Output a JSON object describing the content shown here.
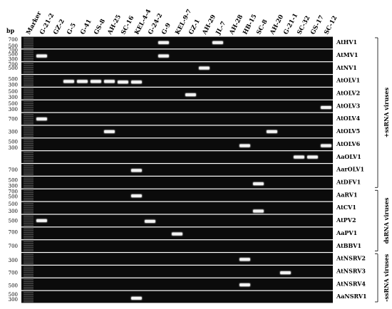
{
  "bp_title": "bp",
  "lanes": [
    "Marker",
    "G-21-2",
    "GZ-2",
    "G-5",
    "G-41",
    "GS-8",
    "AH-25",
    "SC-16",
    "KEL-4-4",
    "G-24-2",
    "G-9",
    "KEL-9-7",
    "GZ-1",
    "AH-29",
    "JL-7",
    "AH-28",
    "HB-15",
    "SC-8",
    "AH-20",
    "G-21-1",
    "SC-32",
    "GS-17",
    "SC-12"
  ],
  "rows": [
    {
      "virus": "AtHV1",
      "bp": [
        {
          "value": "700",
          "f": 0.25
        },
        {
          "value": "500",
          "f": 0.75
        }
      ],
      "bands": [
        {
          "lane": 10,
          "f": 0.5
        },
        {
          "lane": 14,
          "f": 0.5
        }
      ]
    },
    {
      "virus": "AtMV1",
      "bp": [
        {
          "value": "700",
          "f": 0.1
        },
        {
          "value": "500",
          "f": 0.4
        },
        {
          "value": "300",
          "f": 0.8
        }
      ],
      "bands": [
        {
          "lane": 1,
          "f": 0.55
        },
        {
          "lane": 10,
          "f": 0.55
        }
      ]
    },
    {
      "virus": "AtNV1",
      "bp": [
        {
          "value": "700",
          "f": 0.2
        },
        {
          "value": "500",
          "f": 0.5
        }
      ],
      "bands": [
        {
          "lane": 13,
          "f": 0.5
        }
      ]
    },
    {
      "virus": "AtOLV1",
      "bp": [
        {
          "value": "500",
          "f": 0.35
        },
        {
          "value": "300",
          "f": 0.8
        }
      ],
      "bands": [
        {
          "lane": 3,
          "f": 0.55
        },
        {
          "lane": 4,
          "f": 0.55
        },
        {
          "lane": 5,
          "f": 0.55
        },
        {
          "lane": 6,
          "f": 0.55
        },
        {
          "lane": 7,
          "f": 0.6
        },
        {
          "lane": 8,
          "f": 0.6
        }
      ]
    },
    {
      "virus": "AtOLV2",
      "bp": [
        {
          "value": "500",
          "f": 0.35
        },
        {
          "value": "300",
          "f": 0.8
        }
      ],
      "bands": [
        {
          "lane": 12,
          "f": 0.6
        }
      ]
    },
    {
      "virus": "AtOLV3",
      "bp": [
        {
          "value": "500",
          "f": 0.3
        },
        {
          "value": "300",
          "f": 0.75
        }
      ],
      "bands": [
        {
          "lane": 22,
          "f": 0.6
        }
      ]
    },
    {
      "virus": "AtOLV4",
      "bp": [
        {
          "value": "700",
          "f": 0.5
        }
      ],
      "bands": [
        {
          "lane": 1,
          "f": 0.5
        }
      ]
    },
    {
      "virus": "AtOLV5",
      "bp": [
        {
          "value": "300",
          "f": 0.5
        }
      ],
      "bands": [
        {
          "lane": 6,
          "f": 0.5
        },
        {
          "lane": 18,
          "f": 0.5
        }
      ]
    },
    {
      "virus": "AtOLV6",
      "bp": [
        {
          "value": "500",
          "f": 0.3
        },
        {
          "value": "300",
          "f": 0.75
        }
      ],
      "bands": [
        {
          "lane": 16,
          "f": 0.6
        },
        {
          "lane": 22,
          "f": 0.6
        }
      ]
    },
    {
      "virus": "AaOLV1",
      "bp": [],
      "bands": [
        {
          "lane": 20,
          "f": 0.5
        },
        {
          "lane": 21,
          "f": 0.5
        }
      ]
    },
    {
      "virus": "AarOLV1",
      "bp": [
        {
          "value": "700",
          "f": 0.5
        }
      ],
      "bands": [
        {
          "lane": 8,
          "f": 0.55
        }
      ]
    },
    {
      "virus": "AtDFV1",
      "bp": [
        {
          "value": "500",
          "f": 0.3
        },
        {
          "value": "300",
          "f": 0.75
        }
      ],
      "bands": [
        {
          "lane": 17,
          "f": 0.6
        }
      ]
    },
    {
      "virus": "AaRV1",
      "bp": [
        {
          "value": "700",
          "f": 0.2
        },
        {
          "value": "500",
          "f": 0.6
        }
      ],
      "bands": [
        {
          "lane": 8,
          "f": 0.55
        }
      ]
    },
    {
      "virus": "AtCV1",
      "bp": [
        {
          "value": "500",
          "f": 0.2
        },
        {
          "value": "300",
          "f": 0.75
        }
      ],
      "bands": [
        {
          "lane": 17,
          "f": 0.75
        }
      ]
    },
    {
      "virus": "AtPV2",
      "bp": [
        {
          "value": "500",
          "f": 0.5
        }
      ],
      "bands": [
        {
          "lane": 1,
          "f": 0.5
        },
        {
          "lane": 9,
          "f": 0.55
        }
      ]
    },
    {
      "virus": "AaPV1",
      "bp": [
        {
          "value": "700",
          "f": 0.4
        }
      ],
      "bands": [
        {
          "lane": 11,
          "f": 0.55
        }
      ]
    },
    {
      "virus": "AtBBV1",
      "bp": [
        {
          "value": "700",
          "f": 0.5
        }
      ],
      "bands": []
    },
    {
      "virus": "AtNSRV2",
      "bp": [
        {
          "value": "300",
          "f": 0.6
        }
      ],
      "bands": [
        {
          "lane": 16,
          "f": 0.55
        }
      ]
    },
    {
      "virus": "AtNSRV3",
      "bp": [
        {
          "value": "700",
          "f": 0.6
        }
      ],
      "bands": [
        {
          "lane": 19,
          "f": 0.6
        }
      ]
    },
    {
      "virus": "AtNSRV4",
      "bp": [
        {
          "value": "500",
          "f": 0.6
        }
      ],
      "bands": [
        {
          "lane": 16,
          "f": 0.55
        }
      ]
    },
    {
      "virus": "AaNSRV1",
      "bp": [
        {
          "value": "500",
          "f": 0.3
        },
        {
          "value": "300",
          "f": 0.7
        }
      ],
      "bands": [
        {
          "lane": 8,
          "f": 0.6
        }
      ]
    }
  ],
  "groups": [
    {
      "label": "+ssRNA viruses",
      "from": 0,
      "to": 11
    },
    {
      "label": "dsRNA viruses",
      "from": 12,
      "to": 16
    },
    {
      "label": "-ssRNA viruses",
      "from": 17,
      "to": 20
    }
  ]
}
